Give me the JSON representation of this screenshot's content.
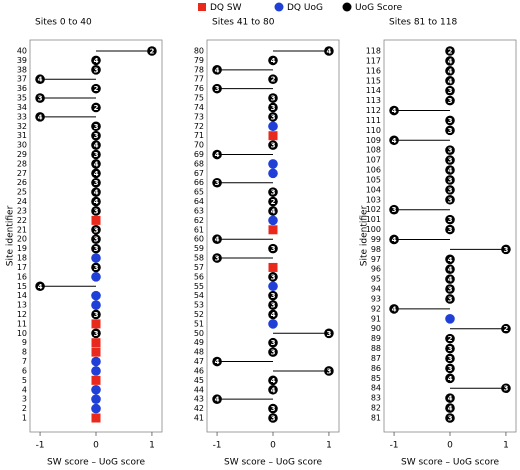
{
  "legend": [
    {
      "name": "DQ SW",
      "color": "#e8291c"
    },
    {
      "name": "DQ UoG",
      "color": "#1f3fd6"
    },
    {
      "name": "UoG Score",
      "color": "#000000"
    }
  ],
  "chart_data": [
    {
      "type": "lollipop",
      "title": "Sites 0 to 40",
      "ylabel": "Site identifier",
      "xlabel": "SW score – UoG score",
      "xlim": [
        -1.18,
        1.18
      ],
      "xticks": [
        -1,
        0,
        1
      ],
      "categories": [
        40,
        39,
        38,
        37,
        36,
        35,
        34,
        33,
        32,
        31,
        30,
        29,
        28,
        27,
        26,
        25,
        24,
        23,
        22,
        21,
        20,
        19,
        18,
        17,
        16,
        15,
        14,
        13,
        12,
        11,
        10,
        9,
        8,
        7,
        6,
        5,
        4,
        3,
        2,
        1
      ],
      "series": [
        {
          "values": [
            null,
            null,
            null,
            null,
            null,
            null,
            null,
            null,
            null,
            null,
            null,
            null,
            null,
            null,
            null,
            null,
            null,
            null,
            0,
            null,
            null,
            null,
            null,
            null,
            null,
            null,
            null,
            null,
            null,
            0,
            null,
            0,
            0,
            null,
            null,
            0,
            null,
            null,
            null,
            0
          ]
        },
        {
          "values": [
            null,
            null,
            null,
            null,
            null,
            null,
            null,
            null,
            null,
            null,
            null,
            null,
            null,
            null,
            null,
            null,
            null,
            null,
            null,
            null,
            null,
            null,
            0,
            null,
            0,
            null,
            0,
            0,
            null,
            null,
            null,
            null,
            null,
            0,
            0,
            null,
            0,
            0,
            0,
            null
          ]
        },
        {
          "values": [
            1,
            0,
            0,
            -1,
            0,
            -1,
            0,
            -1,
            0,
            0,
            0,
            0,
            0,
            0,
            0,
            0,
            0,
            0,
            null,
            0,
            0,
            0,
            null,
            0,
            null,
            -1,
            null,
            null,
            0,
            null,
            0,
            null,
            null,
            null,
            null,
            null,
            null,
            null,
            null,
            null
          ],
          "scores": [
            2,
            4,
            3,
            4,
            2,
            3,
            2,
            4,
            3,
            3,
            4,
            3,
            4,
            4,
            3,
            4,
            4,
            3,
            null,
            3,
            3,
            3,
            null,
            3,
            null,
            4,
            null,
            null,
            3,
            null,
            3,
            null,
            null,
            null,
            null,
            null,
            null,
            null,
            null,
            null
          ]
        }
      ]
    },
    {
      "type": "lollipop",
      "title": "Sites 41 to 80",
      "xlabel": "SW score – UoG score",
      "xlim": [
        -1.18,
        1.18
      ],
      "xticks": [
        -1,
        0,
        1
      ],
      "categories": [
        80,
        79,
        78,
        77,
        76,
        75,
        74,
        73,
        72,
        71,
        70,
        69,
        68,
        67,
        66,
        65,
        64,
        63,
        62,
        61,
        60,
        59,
        58,
        57,
        56,
        55,
        54,
        53,
        52,
        51,
        50,
        49,
        48,
        47,
        46,
        45,
        44,
        43,
        42,
        41
      ],
      "series": [
        {
          "values": [
            null,
            null,
            null,
            null,
            null,
            null,
            null,
            null,
            null,
            0,
            null,
            null,
            null,
            null,
            null,
            null,
            null,
            null,
            null,
            0,
            null,
            null,
            null,
            0,
            null,
            null,
            null,
            null,
            null,
            null,
            null,
            null,
            null,
            null,
            null,
            null,
            null,
            null,
            null,
            null
          ]
        },
        {
          "values": [
            null,
            null,
            null,
            null,
            null,
            null,
            null,
            null,
            0,
            null,
            null,
            null,
            0,
            0,
            null,
            null,
            null,
            null,
            0,
            null,
            null,
            null,
            null,
            null,
            null,
            0,
            null,
            null,
            null,
            0,
            null,
            null,
            null,
            null,
            null,
            null,
            null,
            null,
            null,
            null
          ]
        },
        {
          "values": [
            1,
            0,
            -1,
            0,
            -1,
            0,
            0,
            0,
            null,
            null,
            0,
            -1,
            null,
            null,
            -1,
            0,
            0,
            0,
            null,
            null,
            -1,
            0,
            -1,
            null,
            0,
            null,
            0,
            0,
            0,
            null,
            1,
            0,
            0,
            -1,
            1,
            0,
            0,
            -1,
            0,
            0
          ],
          "scores": [
            4,
            4,
            4,
            2,
            3,
            3,
            3,
            3,
            null,
            null,
            3,
            4,
            null,
            null,
            3,
            3,
            2,
            4,
            null,
            null,
            4,
            3,
            3,
            null,
            3,
            null,
            3,
            3,
            4,
            null,
            3,
            3,
            3,
            4,
            3,
            4,
            4,
            4,
            3,
            3
          ]
        }
      ]
    },
    {
      "type": "lollipop",
      "title": "Sites 81 to 118",
      "ylabel": "Site identifier",
      "xlabel": "SW score – UoG score",
      "xlim": [
        -1.18,
        1.18
      ],
      "xticks": [
        -1,
        0,
        1
      ],
      "categories": [
        118,
        117,
        116,
        115,
        114,
        113,
        112,
        111,
        110,
        109,
        108,
        107,
        106,
        105,
        104,
        103,
        102,
        101,
        100,
        99,
        98,
        97,
        96,
        95,
        94,
        93,
        92,
        91,
        90,
        89,
        88,
        87,
        86,
        85,
        84,
        83,
        82,
        81
      ],
      "series": [
        {
          "values": [
            null,
            null,
            null,
            null,
            null,
            null,
            null,
            null,
            null,
            null,
            null,
            null,
            null,
            null,
            null,
            null,
            null,
            null,
            null,
            null,
            null,
            null,
            null,
            null,
            null,
            null,
            null,
            null,
            null,
            null,
            null,
            null,
            null,
            null,
            null,
            null,
            null,
            null
          ]
        },
        {
          "values": [
            null,
            null,
            null,
            null,
            null,
            null,
            null,
            null,
            null,
            null,
            null,
            null,
            null,
            null,
            null,
            null,
            null,
            null,
            null,
            null,
            null,
            null,
            null,
            null,
            null,
            null,
            null,
            0,
            null,
            null,
            null,
            null,
            null,
            null,
            null,
            null,
            null,
            null
          ]
        },
        {
          "values": [
            0,
            0,
            0,
            0,
            0,
            0,
            -1,
            0,
            0,
            -1,
            0,
            0,
            0,
            0,
            0,
            0,
            -1,
            0,
            0,
            -1,
            1,
            0,
            0,
            0,
            0,
            0,
            -1,
            null,
            1,
            0,
            0,
            0,
            0,
            0,
            1,
            0,
            0,
            0
          ],
          "scores": [
            2,
            4,
            4,
            4,
            3,
            3,
            4,
            3,
            3,
            4,
            3,
            3,
            4,
            3,
            3,
            3,
            3,
            3,
            3,
            4,
            3,
            4,
            4,
            4,
            3,
            3,
            4,
            null,
            2,
            2,
            3,
            3,
            3,
            4,
            3,
            4,
            4,
            3
          ]
        }
      ]
    }
  ]
}
